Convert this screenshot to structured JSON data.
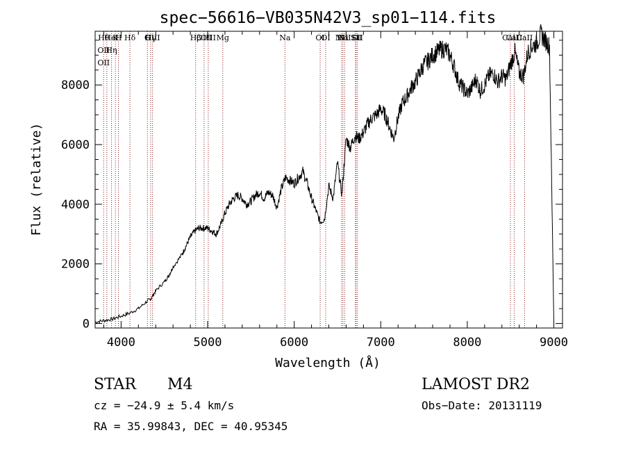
{
  "chart_data": {
    "type": "line",
    "title": "spec−56616−VB035N42V3_sp01−114.fits",
    "xlabel": "Wavelength (Å)",
    "ylabel": "Flux (relative)",
    "xlim": [
      3700,
      9100
    ],
    "ylim": [
      -150,
      9800
    ],
    "xticks": [
      4000,
      5000,
      6000,
      7000,
      8000,
      9000
    ],
    "yticks": [
      0,
      2000,
      4000,
      6000,
      8000
    ],
    "grid": false,
    "series": [
      {
        "x": [
          3700,
          3800,
          3900,
          4000,
          4100,
          4200,
          4300,
          4350,
          4400,
          4500,
          4550,
          4600,
          4700,
          4750,
          4800,
          4850,
          4900,
          4950,
          5000,
          5050,
          5100,
          5150,
          5200,
          5250,
          5300,
          5350,
          5400,
          5450,
          5500,
          5550,
          5600,
          5650,
          5700,
          5750,
          5800,
          5850,
          5900,
          5950,
          6000,
          6050,
          6100,
          6150,
          6200,
          6250,
          6300,
          6350,
          6400,
          6450,
          6500,
          6550,
          6600,
          6650,
          6700,
          6750,
          6800,
          6850,
          6900,
          6950,
          7000,
          7050,
          7100,
          7150,
          7200,
          7250,
          7300,
          7350,
          7400,
          7450,
          7500,
          7550,
          7600,
          7650,
          7700,
          7750,
          7800,
          7850,
          7900,
          7950,
          8000,
          8050,
          8100,
          8150,
          8200,
          8250,
          8300,
          8350,
          8400,
          8450,
          8500,
          8550,
          8600,
          8650,
          8700,
          8750,
          8800,
          8850,
          8900,
          8950,
          9000
        ],
        "y": [
          50,
          100,
          150,
          250,
          350,
          500,
          750,
          850,
          1100,
          1400,
          1600,
          1900,
          2300,
          2600,
          2900,
          3100,
          3200,
          3200,
          3200,
          3100,
          3000,
          3300,
          3700,
          4000,
          4200,
          4300,
          4200,
          4000,
          4100,
          4300,
          4400,
          4200,
          4400,
          4300,
          3900,
          4500,
          4900,
          4800,
          4700,
          4900,
          5100,
          4700,
          4200,
          3800,
          3400,
          3500,
          4600,
          4200,
          5400,
          4300,
          6200,
          5900,
          6300,
          6200,
          6400,
          6700,
          6900,
          7000,
          7200,
          7000,
          6600,
          6200,
          6900,
          7400,
          7600,
          7900,
          8100,
          8400,
          8700,
          8800,
          9000,
          9100,
          9200,
          9200,
          9000,
          8600,
          8100,
          7900,
          7700,
          7900,
          8200,
          7800,
          8000,
          8300,
          8400,
          8100,
          8300,
          8200,
          8700,
          9100,
          8400,
          8300,
          9100,
          9300,
          9400,
          9700,
          9500,
          9300,
          50
        ]
      }
    ],
    "lines": [
      {
        "x": 3798,
        "labels": [
          "Hθ",
          "OII",
          "OII"
        ]
      },
      {
        "x": 3835,
        "labels": [
          ""
        ]
      },
      {
        "x": 3889,
        "labels": [
          "HeI",
          "Hη"
        ]
      },
      {
        "x": 3934,
        "labels": [
          "K"
        ]
      },
      {
        "x": 3969,
        "labels": [
          "H"
        ]
      },
      {
        "x": 4102,
        "labels": [
          "Hδ"
        ]
      },
      {
        "x": 4304,
        "labels": [
          "G"
        ]
      },
      {
        "x": 4341,
        "labels": [
          "Hγ"
        ]
      },
      {
        "x": 4363,
        "labels": [
          "OIII"
        ]
      },
      {
        "x": 4861,
        "labels": [
          "Hβ"
        ]
      },
      {
        "x": 4959,
        "labels": [
          "OIII"
        ]
      },
      {
        "x": 5007,
        "labels": [
          "OIII"
        ]
      },
      {
        "x": 5175,
        "labels": [
          "Mg"
        ]
      },
      {
        "x": 5893,
        "labels": [
          "Na"
        ]
      },
      {
        "x": 6300,
        "labels": [
          "OI"
        ]
      },
      {
        "x": 6364,
        "labels": [
          "OI"
        ]
      },
      {
        "x": 6548,
        "labels": [
          "NII"
        ]
      },
      {
        "x": 6563,
        "labels": [
          "Hα"
        ]
      },
      {
        "x": 6583,
        "labels": [
          "NII"
        ]
      },
      {
        "x": 6707,
        "labels": [
          "Li"
        ]
      },
      {
        "x": 6716,
        "labels": [
          "SII"
        ]
      },
      {
        "x": 6731,
        "labels": [
          "SII"
        ]
      },
      {
        "x": 8498,
        "labels": [
          "CaII"
        ]
      },
      {
        "x": 8542,
        "labels": [
          "CaII"
        ]
      },
      {
        "x": 8662,
        "labels": [
          "CaII"
        ]
      }
    ],
    "line_color": "#8b1a1a",
    "spectrum_color": "#000000"
  },
  "info": {
    "class": "STAR",
    "subclass": "M4",
    "survey": "LAMOST DR2",
    "cz": "cz = −24.9 ± 5.4 km/s",
    "obsdate": "Obs−Date: 20131119",
    "radec": "RA =  35.99843, DEC =  40.95345"
  }
}
